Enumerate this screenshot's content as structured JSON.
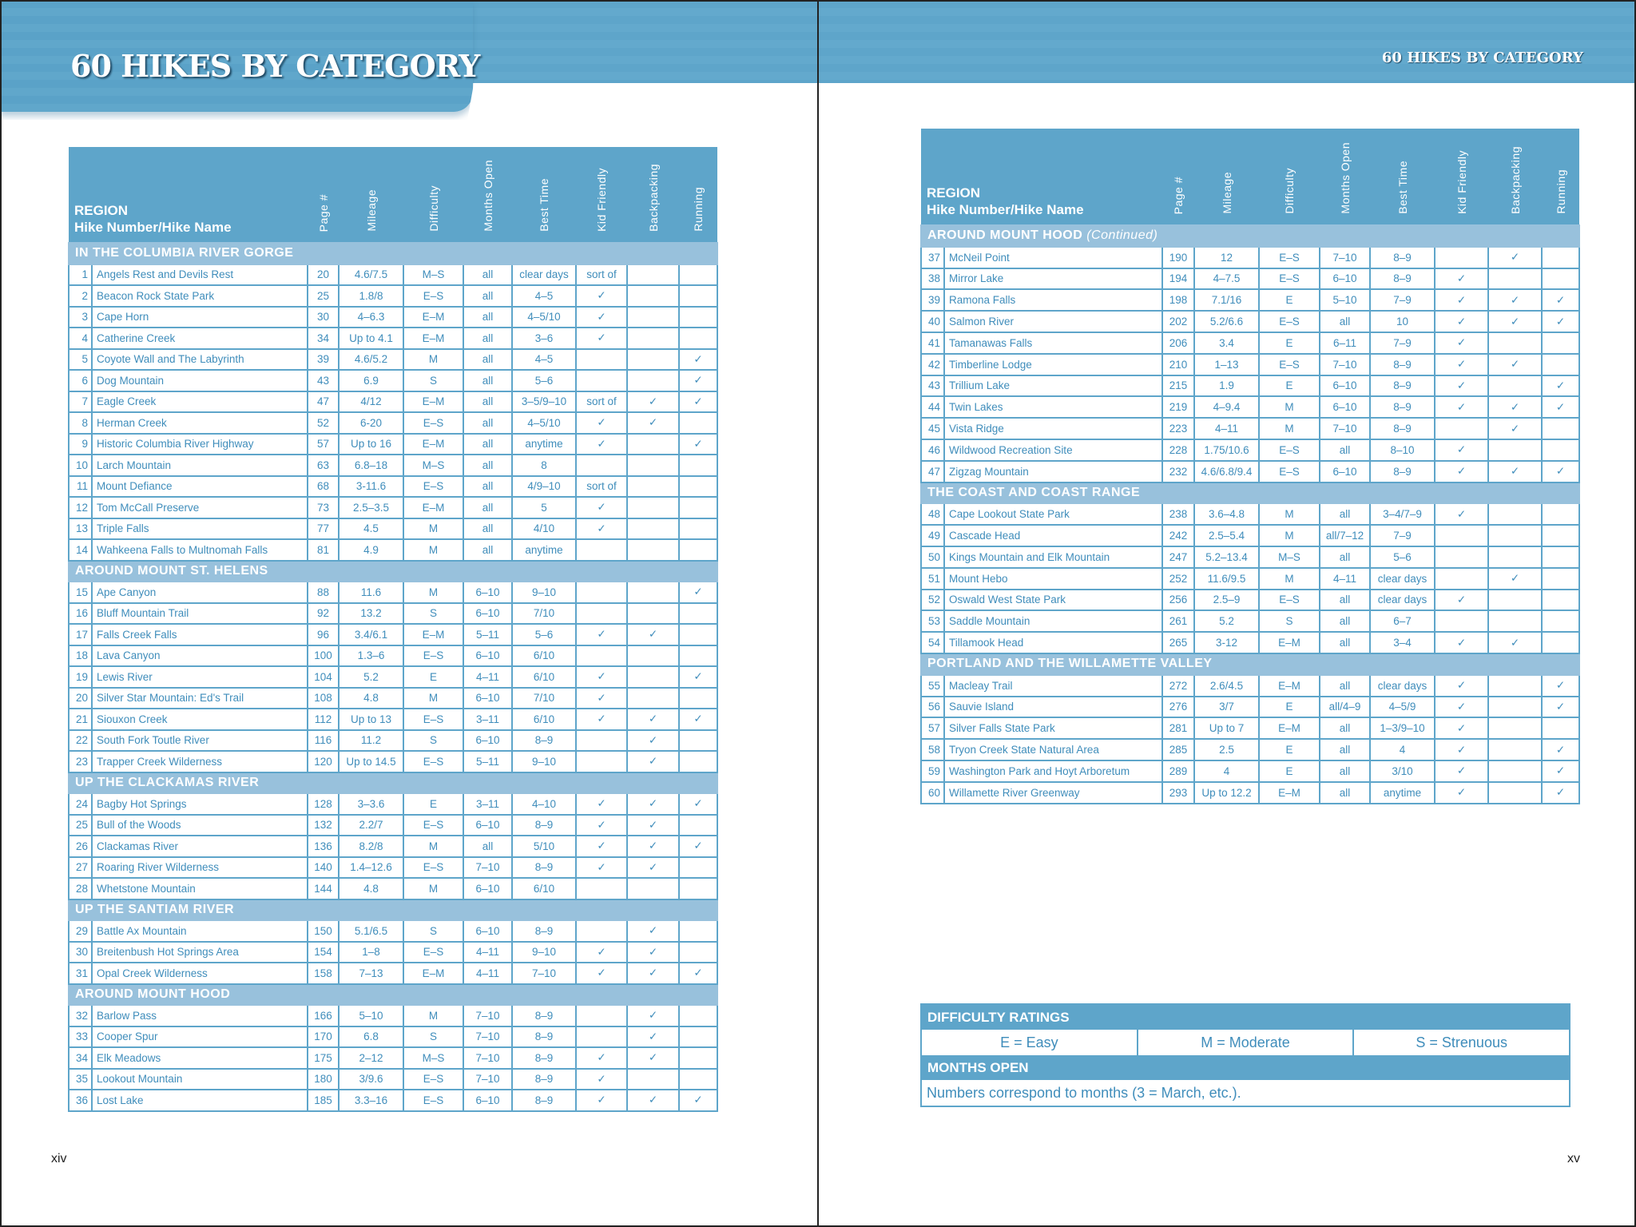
{
  "title": "60 HIKES BY CATEGORY",
  "running_head": "60 HIKES BY CATEGORY",
  "columns": {
    "region": "REGION",
    "hike": "Hike Number/Hike Name",
    "page": "Page #",
    "mileage": "Mileage",
    "difficulty": "Difficulty",
    "months": "Months Open",
    "best": "Best Time",
    "kid": "Kid Friendly",
    "backpacking": "Backpacking",
    "running": "Running"
  },
  "colors": {
    "header": "#5ea5ca",
    "section": "#98c1dc",
    "text": "#3f8dbb"
  },
  "left_table": [
    {
      "region": "IN THE COLUMBIA RIVER GORGE",
      "rows": [
        [
          "1",
          "Angels Rest and Devils Rest",
          "20",
          "4.6/7.5",
          "M–S",
          "all",
          "clear days",
          "sort of",
          "",
          ""
        ],
        [
          "2",
          "Beacon Rock State Park",
          "25",
          "1.8/8",
          "E–S",
          "all",
          "4–5",
          "✓",
          "",
          ""
        ],
        [
          "3",
          "Cape Horn",
          "30",
          "4–6.3",
          "E–M",
          "all",
          "4–5/10",
          "✓",
          "",
          ""
        ],
        [
          "4",
          "Catherine Creek",
          "34",
          "Up to 4.1",
          "E–M",
          "all",
          "3–6",
          "✓",
          "",
          ""
        ],
        [
          "5",
          "Coyote Wall and The Labyrinth",
          "39",
          "4.6/5.2",
          "M",
          "all",
          "4–5",
          "",
          "",
          "✓"
        ],
        [
          "6",
          "Dog Mountain",
          "43",
          "6.9",
          "S",
          "all",
          "5–6",
          "",
          "",
          "✓"
        ],
        [
          "7",
          "Eagle Creek",
          "47",
          "4/12",
          "E–M",
          "all",
          "3–5/9–10",
          "sort of",
          "✓",
          "✓"
        ],
        [
          "8",
          "Herman Creek",
          "52",
          "6-20",
          "E–S",
          "all",
          "4–5/10",
          "✓",
          "✓",
          ""
        ],
        [
          "9",
          "Historic Columbia River Highway",
          "57",
          "Up to 16",
          "E–M",
          "all",
          "anytime",
          "✓",
          "",
          "✓"
        ],
        [
          "10",
          "Larch Mountain",
          "63",
          "6.8–18",
          "M–S",
          "all",
          "8",
          "",
          "",
          ""
        ],
        [
          "11",
          "Mount Defiance",
          "68",
          "3-11.6",
          "E–S",
          "all",
          "4/9–10",
          "sort of",
          "",
          ""
        ],
        [
          "12",
          "Tom McCall Preserve",
          "73",
          "2.5–3.5",
          "E–M",
          "all",
          "5",
          "✓",
          "",
          ""
        ],
        [
          "13",
          "Triple Falls",
          "77",
          "4.5",
          "M",
          "all",
          "4/10",
          "✓",
          "",
          ""
        ],
        [
          "14",
          "Wahkeena Falls to Multnomah Falls",
          "81",
          "4.9",
          "M",
          "all",
          "anytime",
          "",
          "",
          ""
        ]
      ]
    },
    {
      "region": "AROUND MOUNT ST. HELENS",
      "rows": [
        [
          "15",
          "Ape Canyon",
          "88",
          "11.6",
          "M",
          "6–10",
          "9–10",
          "",
          "",
          "✓"
        ],
        [
          "16",
          "Bluff Mountain Trail",
          "92",
          "13.2",
          "S",
          "6–10",
          "7/10",
          "",
          "",
          ""
        ],
        [
          "17",
          "Falls Creek Falls",
          "96",
          "3.4/6.1",
          "E–M",
          "5–11",
          "5–6",
          "✓",
          "✓",
          ""
        ],
        [
          "18",
          "Lava Canyon",
          "100",
          "1.3–6",
          "E–S",
          "6–10",
          "6/10",
          "",
          "",
          ""
        ],
        [
          "19",
          "Lewis River",
          "104",
          "5.2",
          "E",
          "4–11",
          "6/10",
          "✓",
          "",
          "✓"
        ],
        [
          "20",
          "Silver Star Mountain: Ed's Trail",
          "108",
          "4.8",
          "M",
          "6–10",
          "7/10",
          "✓",
          "",
          ""
        ],
        [
          "21",
          "Siouxon Creek",
          "112",
          "Up to 13",
          "E–S",
          "3–11",
          "6/10",
          "✓",
          "✓",
          "✓"
        ],
        [
          "22",
          "South Fork Toutle River",
          "116",
          "11.2",
          "S",
          "6–10",
          "8–9",
          "",
          "✓",
          ""
        ],
        [
          "23",
          "Trapper Creek Wilderness",
          "120",
          "Up to 14.5",
          "E–S",
          "5–11",
          "9–10",
          "",
          "✓",
          ""
        ]
      ]
    },
    {
      "region": "UP THE CLACKAMAS RIVER",
      "rows": [
        [
          "24",
          "Bagby Hot Springs",
          "128",
          "3–3.6",
          "E",
          "3–11",
          "4–10",
          "✓",
          "✓",
          "✓"
        ],
        [
          "25",
          "Bull of the Woods",
          "132",
          "2.2/7",
          "E–S",
          "6–10",
          "8–9",
          "✓",
          "✓",
          ""
        ],
        [
          "26",
          "Clackamas River",
          "136",
          "8.2/8",
          "M",
          "all",
          "5/10",
          "✓",
          "✓",
          "✓"
        ],
        [
          "27",
          "Roaring River Wilderness",
          "140",
          "1.4–12.6",
          "E–S",
          "7–10",
          "8–9",
          "✓",
          "✓",
          ""
        ],
        [
          "28",
          "Whetstone Mountain",
          "144",
          "4.8",
          "M",
          "6–10",
          "6/10",
          "",
          "",
          ""
        ]
      ]
    },
    {
      "region": "UP THE SANTIAM RIVER",
      "rows": [
        [
          "29",
          "Battle Ax Mountain",
          "150",
          "5.1/6.5",
          "S",
          "6–10",
          "8–9",
          "",
          "✓",
          ""
        ],
        [
          "30",
          "Breitenbush Hot Springs Area",
          "154",
          "1–8",
          "E–S",
          "4–11",
          "9–10",
          "✓",
          "✓",
          ""
        ],
        [
          "31",
          "Opal Creek Wilderness",
          "158",
          "7–13",
          "E–M",
          "4–11",
          "7–10",
          "✓",
          "✓",
          "✓"
        ]
      ]
    },
    {
      "region": "AROUND MOUNT HOOD",
      "rows": [
        [
          "32",
          "Barlow Pass",
          "166",
          "5–10",
          "M",
          "7–10",
          "8–9",
          "",
          "✓",
          ""
        ],
        [
          "33",
          "Cooper Spur",
          "170",
          "6.8",
          "S",
          "7–10",
          "8–9",
          "",
          "✓",
          ""
        ],
        [
          "34",
          "Elk Meadows",
          "175",
          "2–12",
          "M–S",
          "7–10",
          "8–9",
          "✓",
          "✓",
          ""
        ],
        [
          "35",
          "Lookout Mountain",
          "180",
          "3/9.6",
          "E–S",
          "7–10",
          "8–9",
          "✓",
          "",
          ""
        ],
        [
          "36",
          "Lost Lake",
          "185",
          "3.3–16",
          "E–S",
          "6–10",
          "8–9",
          "✓",
          "✓",
          "✓"
        ]
      ]
    }
  ],
  "right_table": [
    {
      "region": "AROUND MOUNT HOOD",
      "continued": "(Continued)",
      "rows": [
        [
          "37",
          "McNeil Point",
          "190",
          "12",
          "E–S",
          "7–10",
          "8–9",
          "",
          "✓",
          ""
        ],
        [
          "38",
          "Mirror Lake",
          "194",
          "4–7.5",
          "E–S",
          "6–10",
          "8–9",
          "✓",
          "",
          ""
        ],
        [
          "39",
          "Ramona Falls",
          "198",
          "7.1/16",
          "E",
          "5–10",
          "7–9",
          "✓",
          "✓",
          "✓"
        ],
        [
          "40",
          "Salmon River",
          "202",
          "5.2/6.6",
          "E–S",
          "all",
          "10",
          "✓",
          "✓",
          "✓"
        ],
        [
          "41",
          "Tamanawas Falls",
          "206",
          "3.4",
          "E",
          "6–11",
          "7–9",
          "✓",
          "",
          ""
        ],
        [
          "42",
          "Timberline Lodge",
          "210",
          "1–13",
          "E–S",
          "7–10",
          "8–9",
          "✓",
          "✓",
          ""
        ],
        [
          "43",
          "Trillium Lake",
          "215",
          "1.9",
          "E",
          "6–10",
          "8–9",
          "✓",
          "",
          "✓"
        ],
        [
          "44",
          "Twin Lakes",
          "219",
          "4–9.4",
          "M",
          "6–10",
          "8–9",
          "✓",
          "✓",
          "✓"
        ],
        [
          "45",
          "Vista Ridge",
          "223",
          "4–11",
          "M",
          "7–10",
          "8–9",
          "",
          "✓",
          ""
        ],
        [
          "46",
          "Wildwood Recreation Site",
          "228",
          "1.75/10.6",
          "E–S",
          "all",
          "8–10",
          "✓",
          "",
          ""
        ],
        [
          "47",
          "Zigzag Mountain",
          "232",
          "4.6/6.8/9.4",
          "E–S",
          "6–10",
          "8–9",
          "✓",
          "✓",
          "✓"
        ]
      ]
    },
    {
      "region": "THE COAST AND COAST RANGE",
      "rows": [
        [
          "48",
          "Cape Lookout State Park",
          "238",
          "3.6–4.8",
          "M",
          "all",
          "3–4/7–9",
          "✓",
          "",
          ""
        ],
        [
          "49",
          "Cascade Head",
          "242",
          "2.5–5.4",
          "M",
          "all/7–12",
          "7–9",
          "",
          "",
          ""
        ],
        [
          "50",
          "Kings Mountain and Elk Mountain",
          "247",
          "5.2–13.4",
          "M–S",
          "all",
          "5–6",
          "",
          "",
          ""
        ],
        [
          "51",
          "Mount Hebo",
          "252",
          "11.6/9.5",
          "M",
          "4–11",
          "clear days",
          "",
          "✓",
          ""
        ],
        [
          "52",
          "Oswald West State Park",
          "256",
          "2.5–9",
          "E–S",
          "all",
          "clear days",
          "✓",
          "",
          ""
        ],
        [
          "53",
          "Saddle Mountain",
          "261",
          "5.2",
          "S",
          "all",
          "6–7",
          "",
          "",
          ""
        ],
        [
          "54",
          "Tillamook Head",
          "265",
          "3-12",
          "E–M",
          "all",
          "3–4",
          "✓",
          "✓",
          ""
        ]
      ]
    },
    {
      "region": "PORTLAND AND THE WILLAMETTE VALLEY",
      "rows": [
        [
          "55",
          "Macleay Trail",
          "272",
          "2.6/4.5",
          "E–M",
          "all",
          "clear days",
          "✓",
          "",
          "✓"
        ],
        [
          "56",
          "Sauvie Island",
          "276",
          "3/7",
          "E",
          "all/4–9",
          "4–5/9",
          "✓",
          "",
          "✓"
        ],
        [
          "57",
          "Silver Falls State Park",
          "281",
          "Up to 7",
          "E–M",
          "all",
          "1–3/9–10",
          "✓",
          "",
          ""
        ],
        [
          "58",
          "Tryon Creek State Natural Area",
          "285",
          "2.5",
          "E",
          "all",
          "4",
          "✓",
          "",
          "✓"
        ],
        [
          "59",
          "Washington Park and Hoyt Arboretum",
          "289",
          "4",
          "E",
          "all",
          "3/10",
          "✓",
          "",
          "✓"
        ],
        [
          "60",
          "Willamette River Greenway",
          "293",
          "Up to 12.2",
          "E–M",
          "all",
          "anytime",
          "✓",
          "",
          "✓"
        ]
      ]
    }
  ],
  "legend": {
    "difficulty_title": "DIFFICULTY RATINGS",
    "ratings": [
      "E = Easy",
      "M = Moderate",
      "S = Strenuous"
    ],
    "months_title": "MONTHS OPEN",
    "months_note": "Numbers correspond to months (3 = March, etc.)."
  },
  "page_numbers": {
    "left": "xiv",
    "right": "xv"
  }
}
